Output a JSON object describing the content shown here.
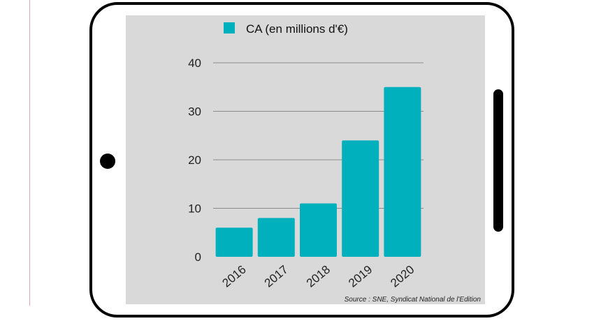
{
  "source": "Source : SNE, Syndicat National de l'Edition",
  "chart_data": {
    "type": "bar",
    "categories": [
      "2016",
      "2017",
      "2018",
      "2019",
      "2020"
    ],
    "series": [
      {
        "name": "CA (en millions d'€)",
        "values": [
          6,
          8,
          11,
          24,
          35
        ],
        "color": "#00b0bd"
      }
    ],
    "ylim": [
      0,
      40
    ],
    "yticks": [
      0,
      10,
      20,
      30,
      40
    ],
    "grid": true,
    "legend": "top"
  }
}
